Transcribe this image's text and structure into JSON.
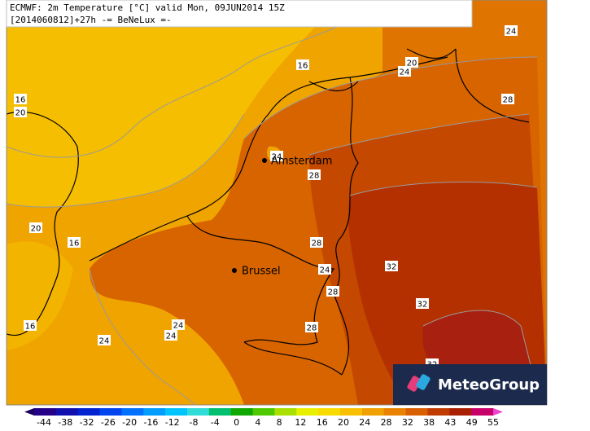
{
  "header": {
    "line1": "ECMWF: 2m Temperature [°C] valid Mon, 09JUN2014 15Z",
    "line2": "[2014060812]+27h -= BeNeLux =-"
  },
  "cities": [
    "Amsterdam",
    "Brussel"
  ],
  "contour_labels": [
    24,
    16,
    20,
    24,
    16,
    20,
    28,
    24,
    28,
    20,
    16,
    28,
    24,
    32,
    28,
    32,
    16,
    24,
    24,
    24,
    28,
    32
  ],
  "logo": "MeteoGroup",
  "legend": {
    "ticks": [
      -44,
      -38,
      -32,
      -26,
      -20,
      -16,
      -12,
      -8,
      -4,
      0,
      4,
      8,
      12,
      16,
      20,
      24,
      28,
      32,
      38,
      43,
      49,
      55
    ],
    "colors": [
      "#1a0060",
      "#240088",
      "#1010b0",
      "#0022d0",
      "#0044f0",
      "#0070ff",
      "#009cff",
      "#00c4ff",
      "#30dcd8",
      "#00c070",
      "#10a800",
      "#50c800",
      "#a8e000",
      "#e8f000",
      "#f8dc00",
      "#f8c000",
      "#f0a000",
      "#e88200",
      "#d86000",
      "#c03c00",
      "#a82000",
      "#c8006a",
      "#f040d0"
    ]
  }
}
